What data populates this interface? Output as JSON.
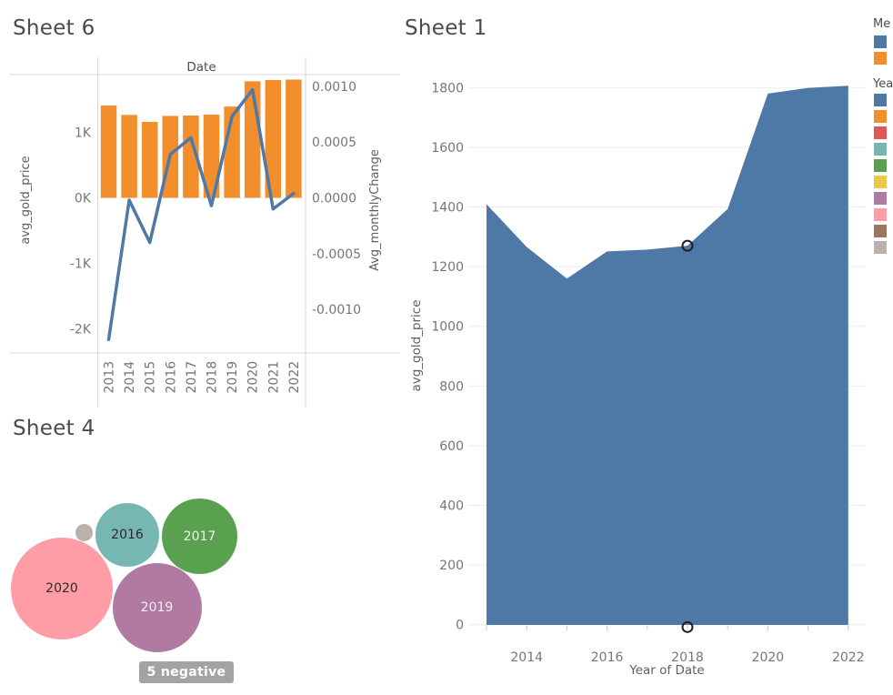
{
  "sheet6": {
    "title": "Sheet 6",
    "column_header": "Date",
    "left_axis": {
      "title": "avg_gold_price",
      "tick_labels": [
        "1K",
        "0K",
        "-1K",
        "-2K"
      ],
      "tick_values": [
        1000,
        0,
        -1000,
        -2000
      ]
    },
    "right_axis": {
      "title": "Avg_monthlyChange",
      "tick_labels": [
        "0.0010",
        "0.0005",
        "0.0000",
        "-0.0005",
        "-0.0010"
      ],
      "tick_values": [
        0.001,
        0.0005,
        0,
        -0.0005,
        -0.001
      ]
    },
    "x_labels": [
      "2013",
      "2014",
      "2015",
      "2016",
      "2017",
      "2018",
      "2019",
      "2020",
      "2021",
      "2022"
    ]
  },
  "sheet1": {
    "title": "Sheet 1",
    "x_axis_title": "Year of Date",
    "y_axis_title": "avg_gold_price",
    "y_tick_values": [
      0,
      200,
      400,
      600,
      800,
      1000,
      1200,
      1400,
      1600,
      1800
    ],
    "x_tick_labels": [
      "2014",
      "2016",
      "2018",
      "2020",
      "2022"
    ]
  },
  "sheet4": {
    "title": "Sheet 4",
    "badge": "5 negative",
    "badge_color": "#a3a3a3"
  },
  "legend": {
    "measure_header_visible": "Me",
    "year_header_visible": "Yea",
    "measure_colors": [
      "#4e79a7",
      "#f28e2b"
    ],
    "year_colors": [
      "#4e79a7",
      "#f28e2b",
      "#e15759",
      "#76b7b2",
      "#59a14f",
      "#edc948",
      "#b07aa1",
      "#ff9da7",
      "#9c755f",
      "#bab0ac"
    ]
  },
  "colors": {
    "bar_orange": "#f28e2b",
    "line_blue": "#4e79a7",
    "area_blue": "#4e79a7",
    "tick_text": "#767676",
    "axis_title_text": "#5f5f5f",
    "header_text": "#4a4a4a",
    "border_line": "#d9d9d9",
    "grid_line": "#ececec",
    "tick_mark": "#c9c9c9",
    "marker_stroke": "#1e1e1e"
  },
  "chart_data": [
    {
      "id": "sheet6",
      "type": "bar",
      "title": "Sheet 6",
      "xlabel": "Date",
      "left_ylabel": "avg_gold_price",
      "right_ylabel": "Avg_monthlyChange",
      "categories": [
        2013,
        2014,
        2015,
        2016,
        2017,
        2018,
        2019,
        2020,
        2021,
        2022
      ],
      "series": [
        {
          "name": "avg_gold_price",
          "mark": "bar",
          "axis": "left",
          "color": "#f28e2b",
          "values": [
            1409,
            1266,
            1160,
            1251,
            1257,
            1270,
            1393,
            1780,
            1799,
            1806
          ]
        },
        {
          "name": "Avg_monthlyChange",
          "mark": "line",
          "axis": "right",
          "color": "#4e79a7",
          "values": [
            -0.00127,
            -2e-05,
            -0.0004,
            0.00039,
            0.00054,
            -7e-05,
            0.00073,
            0.00097,
            -0.0001,
            4e-05
          ]
        }
      ],
      "left_ylim": [
        -2370,
        1910
      ],
      "right_ylim": [
        -0.0014,
        0.00112
      ],
      "grid": false
    },
    {
      "id": "sheet1",
      "type": "area",
      "title": "Sheet 1",
      "xlabel": "Year of Date",
      "ylabel": "avg_gold_price",
      "x": [
        2013,
        2014,
        2015,
        2016,
        2017,
        2018,
        2019,
        2020,
        2021,
        2022
      ],
      "values": [
        1409,
        1266,
        1160,
        1251,
        1257,
        1270,
        1393,
        1780,
        1799,
        1806
      ],
      "ylim": [
        -40,
        1880
      ],
      "color": "#4e79a7",
      "grid": true,
      "legend_position": "right",
      "markers": [
        {
          "x": 2018,
          "y": 1270
        },
        {
          "x": 2018,
          "y": -8
        }
      ]
    },
    {
      "id": "sheet4",
      "type": "scatter",
      "title": "Sheet 4",
      "note_label": "5 negative",
      "bubbles": [
        {
          "label": "",
          "cx": 92.5,
          "cy": 585.5,
          "r": 9.5,
          "color": "#bab0ac",
          "label_color": "#2b2b2b"
        },
        {
          "label": "2016",
          "cx": 140,
          "cy": 588,
          "r": 35,
          "color": "#76b7b2",
          "label_color": "#2b2b2b"
        },
        {
          "label": "2017",
          "cx": 219.5,
          "cy": 589.5,
          "r": 41.5,
          "color": "#59a14f",
          "label_color": "#eef4ec"
        },
        {
          "label": "2020",
          "cx": 68,
          "cy": 647,
          "r": 56,
          "color": "#ff9da7",
          "label_color": "#2b2b2b"
        },
        {
          "label": "2019",
          "cx": 172.5,
          "cy": 668,
          "r": 49,
          "color": "#b07aa1",
          "label_color": "#f2eef4"
        }
      ]
    }
  ]
}
